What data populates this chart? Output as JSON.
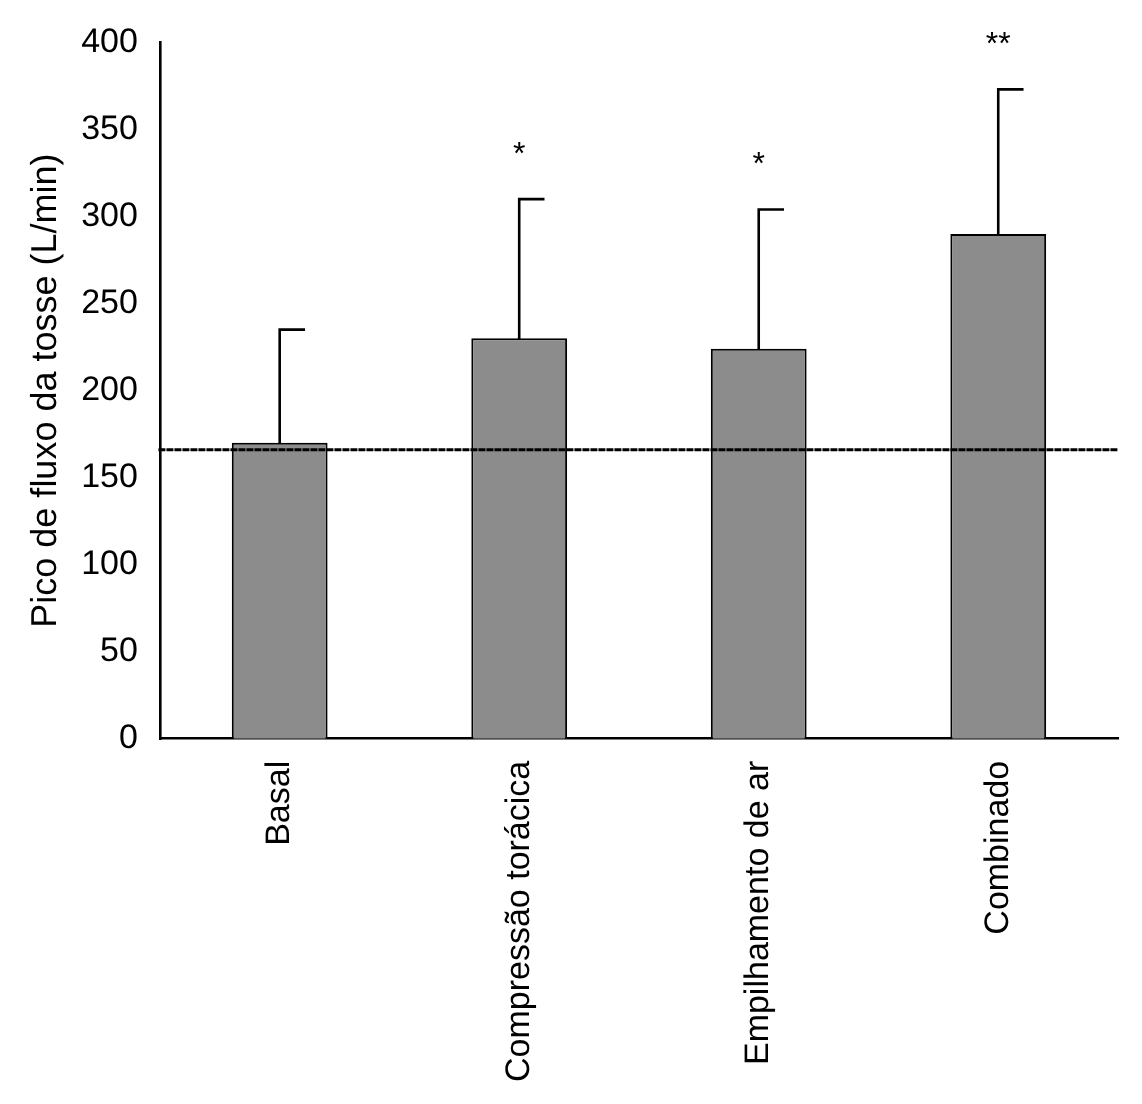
{
  "chart_data": {
    "type": "bar",
    "ylabel": "Pico de fluxo da tosse (L/min)",
    "categories": [
      "Basal",
      "Compressão torácica",
      "Empilhamento de ar",
      "Combinado"
    ],
    "values": [
      170,
      230,
      224,
      290
    ],
    "errors": [
      [
        170,
        235
      ],
      [
        230,
        310
      ],
      [
        224,
        304
      ],
      [
        290,
        373
      ]
    ],
    "color": "#8c8c8c",
    "ylim": [
      0,
      400
    ],
    "yticks": [
      0,
      50,
      100,
      150,
      200,
      250,
      300,
      350,
      400
    ],
    "grid": false,
    "legend": false,
    "ref_lines": [
      {
        "axis": "y",
        "value": 166,
        "line_style": "dotted",
        "color": "#000000"
      }
    ],
    "annotations": [
      "*",
      "*",
      "**"
    ]
  }
}
